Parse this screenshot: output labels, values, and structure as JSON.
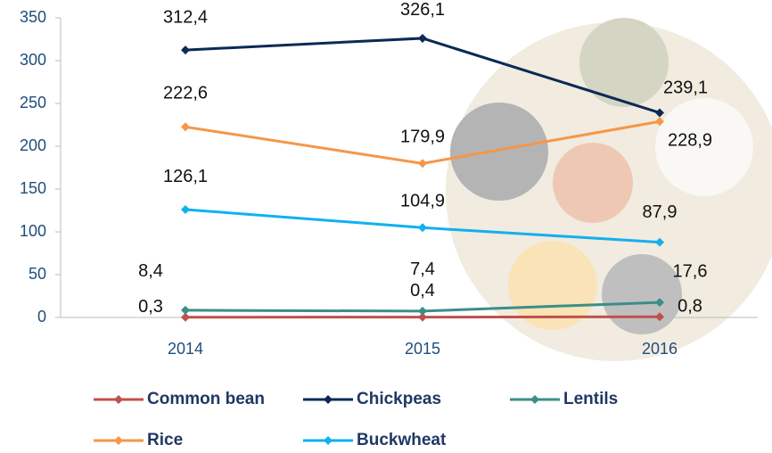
{
  "chart_data": {
    "type": "line",
    "categories": [
      "2014",
      "2015",
      "2016"
    ],
    "series": [
      {
        "name": "Common bean",
        "color": "#c0504d",
        "values": [
          0.3,
          0.4,
          0.8
        ],
        "value_labels": [
          "0,3",
          "0,4",
          "0,8"
        ]
      },
      {
        "name": "Chickpeas",
        "color": "#0b2a55",
        "values": [
          312.4,
          326.1,
          239.1
        ],
        "value_labels": [
          "312,4",
          "326,1",
          "239,1"
        ]
      },
      {
        "name": "Lentils",
        "color": "#3a8f86",
        "values": [
          8.4,
          7.4,
          17.6
        ],
        "value_labels": [
          "8,4",
          "7,4",
          "17,6"
        ]
      },
      {
        "name": "Rice",
        "color": "#f79646",
        "values": [
          222.6,
          179.9,
          228.9
        ],
        "value_labels": [
          "222,6",
          "179,9",
          "228,9"
        ]
      },
      {
        "name": "Buckwheat",
        "color": "#12b0ee",
        "values": [
          126.1,
          104.9,
          87.9
        ],
        "value_labels": [
          "126,1",
          "104,9",
          "87,9"
        ]
      }
    ],
    "ylim": [
      0,
      350
    ],
    "yticks": [
      0,
      50,
      100,
      150,
      200,
      250,
      300,
      350
    ],
    "grid": false
  }
}
